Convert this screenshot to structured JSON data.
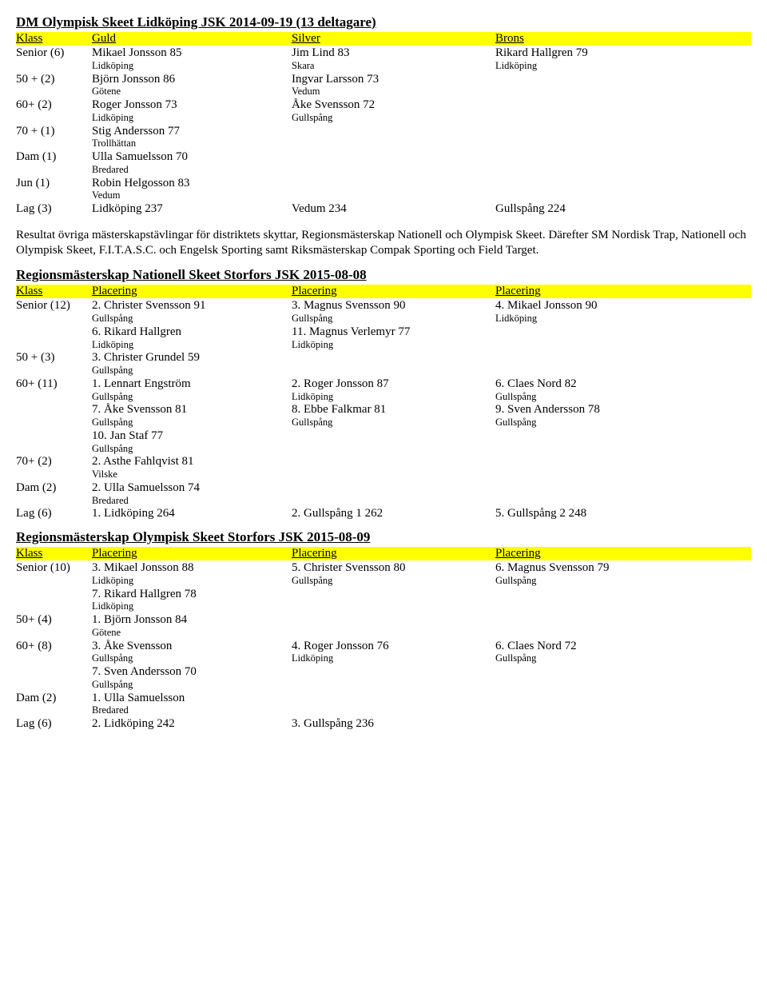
{
  "doc1": {
    "title": "DM Olympisk Skeet Lidköping JSK 2014-09-19 (13 deltagare)",
    "headers": {
      "c0": "Klass",
      "c1": "Guld",
      "c2": "Silver",
      "c3": "Brons"
    },
    "rows": [
      {
        "c0": "Senior (6)",
        "c1": "Mikael Jonsson 85",
        "c1s": "Lidköping",
        "c2": "Jim Lind 83",
        "c2s": "Skara",
        "c3": "Rikard Hallgren 79",
        "c3s": "Lidköping"
      },
      {
        "c0": "50 + (2)",
        "c1": "Björn Jonsson 86",
        "c1s": "Götene",
        "c2": "Ingvar Larsson 73",
        "c2s": "Vedum",
        "c3": "",
        "c3s": ""
      },
      {
        "c0": "60+ (2)",
        "c1": "Roger Jonsson 73",
        "c1s": "Lidköping",
        "c2": "Åke Svensson 72",
        "c2s": "Gullspång",
        "c3": "",
        "c3s": ""
      },
      {
        "c0": "70 + (1)",
        "c1": "Stig Andersson 77",
        "c1s": "Trollhättan",
        "c2": "",
        "c2s": "",
        "c3": "",
        "c3s": ""
      },
      {
        "c0": "Dam (1)",
        "c1": "Ulla Samuelsson 70",
        "c1s": "Bredared",
        "c2": "",
        "c2s": "",
        "c3": "",
        "c3s": ""
      },
      {
        "c0": "Jun (1)",
        "c1": "Robin Helgosson 83",
        "c1s": "Vedum",
        "c2": "",
        "c2s": "",
        "c3": "",
        "c3s": ""
      },
      {
        "c0": "Lag (3)",
        "c1": "Lidköping 237",
        "c1s": "",
        "c2": "Vedum 234",
        "c2s": "",
        "c3": "Gullspång 224",
        "c3s": ""
      }
    ]
  },
  "para": "Resultat övriga mästerskapstävlingar för distriktets skyttar, Regionsmästerskap Nationell och Olympisk Skeet. Därefter SM Nordisk Trap, Nationell och Olympisk Skeet, F.I.T.A.S.C. och Engelsk Sporting samt Riksmästerskap Compak Sporting och Field Target.",
  "doc2": {
    "title": "Regionsmästerskap Nationell Skeet Storfors JSK 2015-08-08",
    "headers": {
      "c0": "Klass",
      "c1": "Placering",
      "c2": "Placering",
      "c3": "Placering"
    },
    "rows": [
      {
        "c0": "Senior (12)",
        "c1": "2. Christer Svensson 91",
        "c1s": "Gullspång",
        "c2": "3. Magnus Svensson 90",
        "c2s": "Gullspång",
        "c3": "4. Mikael Jonsson 90",
        "c3s": "Lidköping"
      },
      {
        "c0": "",
        "c1": "6. Rikard Hallgren",
        "c1s": "Lidköping",
        "c2": "11. Magnus Verlemyr 77",
        "c2s": "Lidköping",
        "c3": "",
        "c3s": ""
      },
      {
        "c0": "50 + (3)",
        "c1": "3. Christer Grundel 59",
        "c1s": "Gullspång",
        "c2": "",
        "c2s": "",
        "c3": "",
        "c3s": ""
      },
      {
        "c0": "60+ (11)",
        "c1": "1. Lennart Engström",
        "c1s": "Gullspång",
        "c2": "2. Roger Jonsson 87",
        "c2s": "Lidköping",
        "c3": "6. Claes Nord 82",
        "c3s": "Gullspång"
      },
      {
        "c0": "",
        "c1": "7. Åke Svensson 81",
        "c1s": "Gullspång",
        "c2": "8. Ebbe Falkmar 81",
        "c2s": "Gullspång",
        "c3": "9. Sven Andersson 78",
        "c3s": "Gullspång"
      },
      {
        "c0": "",
        "c1": "10. Jan Staf 77",
        "c1s": "Gullspång",
        "c2": "",
        "c2s": "",
        "c3": "",
        "c3s": ""
      },
      {
        "c0": "70+ (2)",
        "c1": "2. Asthe Fahlqvist 81",
        "c1s": "Vilske",
        "c2": "",
        "c2s": "",
        "c3": "",
        "c3s": ""
      },
      {
        "c0": "Dam (2)",
        "c1": "2. Ulla Samuelsson 74",
        "c1s": "Bredared",
        "c2": "",
        "c2s": "",
        "c3": "",
        "c3s": ""
      },
      {
        "c0": "Lag (6)",
        "c1": "1. Lidköping  264",
        "c1s": "",
        "c2": "2. Gullspång 1  262",
        "c2s": "",
        "c3": "5. Gullspång 2  248",
        "c3s": ""
      }
    ]
  },
  "doc3": {
    "title": "Regionsmästerskap Olympisk Skeet Storfors JSK 2015-08-09",
    "headers": {
      "c0": "Klass",
      "c1": "Placering",
      "c2": "Placering",
      "c3": "Placering"
    },
    "rows": [
      {
        "c0": "Senior (10)",
        "c1": "3. Mikael Jonsson 88",
        "c1s": "Lidköping",
        "c2": "5. Christer Svensson 80",
        "c2s": "Gullspång",
        "c3": "6. Magnus Svensson 79",
        "c3s": "Gullspång"
      },
      {
        "c0": "",
        "c1": "7. Rikard Hallgren 78",
        "c1s": "Lidköping",
        "c2": "",
        "c2s": "",
        "c3": "",
        "c3s": ""
      },
      {
        "c0": "50+ (4)",
        "c1": "1. Björn Jonsson 84",
        "c1s": "Götene",
        "c2": "",
        "c2s": "",
        "c3": "",
        "c3s": ""
      },
      {
        "c0": "60+ (8)",
        "c1": "3. Åke Svensson",
        "c1s": "Gullspång",
        "c2": "4. Roger Jonsson 76",
        "c2s": "Lidköping",
        "c3": "6. Claes Nord 72",
        "c3s": "Gullspång"
      },
      {
        "c0": "",
        "c1": "7. Sven Andersson 70",
        "c1s": "Gullspång",
        "c2": "",
        "c2s": "",
        "c3": "",
        "c3s": ""
      },
      {
        "c0": "Dam (2)",
        "c1": "1. Ulla Samuelsson",
        "c1s": "Bredared",
        "c2": "",
        "c2s": "",
        "c3": "",
        "c3s": ""
      },
      {
        "c0": "Lag (6)",
        "c1": "2. Lidköping 242",
        "c1s": "",
        "c2": "3. Gullspång 236",
        "c2s": "",
        "c3": "",
        "c3s": ""
      }
    ]
  }
}
